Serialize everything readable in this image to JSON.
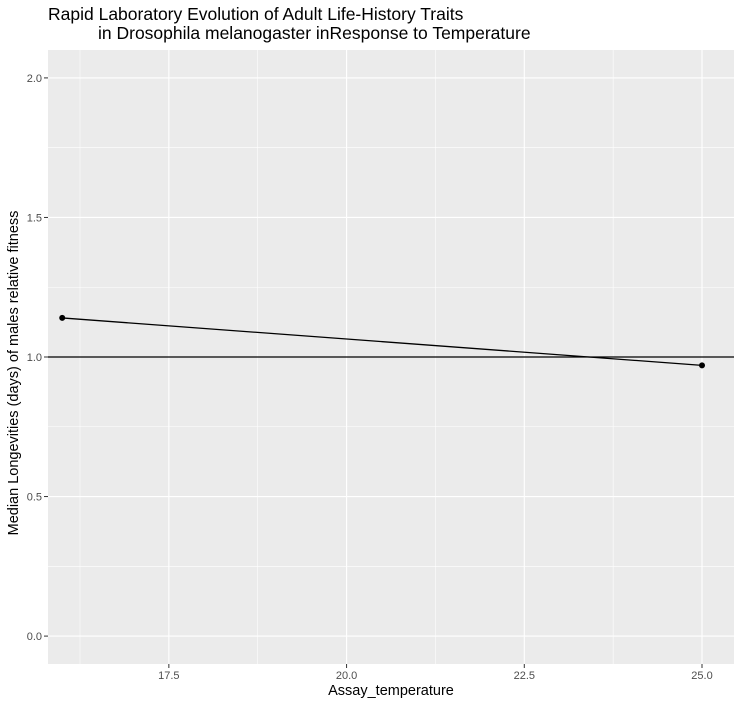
{
  "chart_data": {
    "type": "line",
    "title_lines": [
      "Rapid Laboratory Evolution of Adult Life-History Traits",
      "in Drosophila melanogaster inResponse to Temperature"
    ],
    "xlabel": "Assay_temperature",
    "ylabel": "Median Longevities (days) of males relative fitness",
    "xlim": [
      15.8,
      25.45
    ],
    "ylim": [
      -0.1,
      2.1
    ],
    "x_ticks": [
      17.5,
      20.0,
      22.5,
      25.0
    ],
    "x_tick_labels": [
      "17.5",
      "20.0",
      "22.5",
      "25.0"
    ],
    "y_ticks": [
      0.0,
      0.5,
      1.0,
      1.5,
      2.0
    ],
    "y_tick_labels": [
      "0.0",
      "0.5",
      "1.0",
      "1.5",
      "2.0"
    ],
    "x": [
      16,
      25
    ],
    "y": [
      1.14,
      0.97
    ],
    "reference_line_y": 1.0,
    "grid": true,
    "legend": "none",
    "colors": {
      "panel_background": "#ebebeb",
      "grid_major": "#ffffff",
      "line": "#000000",
      "point": "#000000"
    }
  }
}
